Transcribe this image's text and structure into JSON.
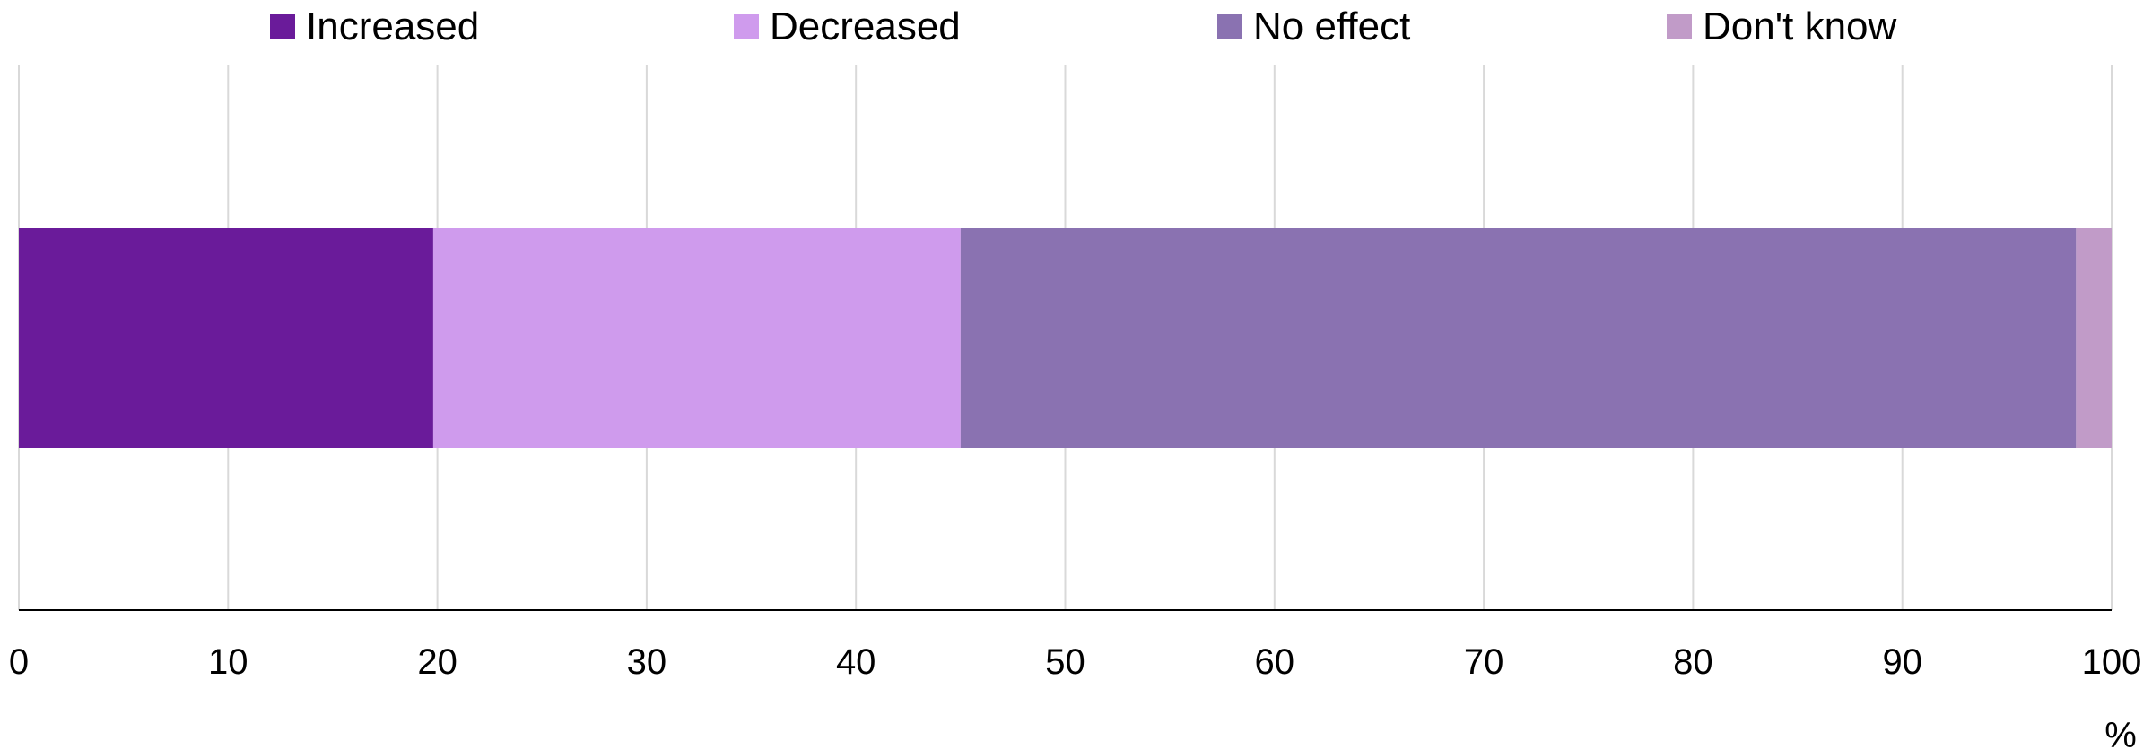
{
  "chart_data": {
    "type": "bar",
    "orientation": "horizontal",
    "stacked": true,
    "categories": [
      ""
    ],
    "series": [
      {
        "name": "Increased",
        "values": [
          19.8
        ],
        "color": "#6a1b9a"
      },
      {
        "name": "Decreased",
        "values": [
          25.2
        ],
        "color": "#cf9bed"
      },
      {
        "name": "No effect",
        "values": [
          53.3
        ],
        "color": "#8a72b1"
      },
      {
        "name": "Don't know",
        "values": [
          1.7
        ],
        "color": "#c19bc8"
      }
    ],
    "xlim": [
      0,
      100
    ],
    "xticks": [
      "0",
      "10",
      "20",
      "30",
      "40",
      "50",
      "60",
      "70",
      "80",
      "90",
      "100"
    ],
    "xunit": "%",
    "grid": true,
    "legend_position": "top"
  }
}
